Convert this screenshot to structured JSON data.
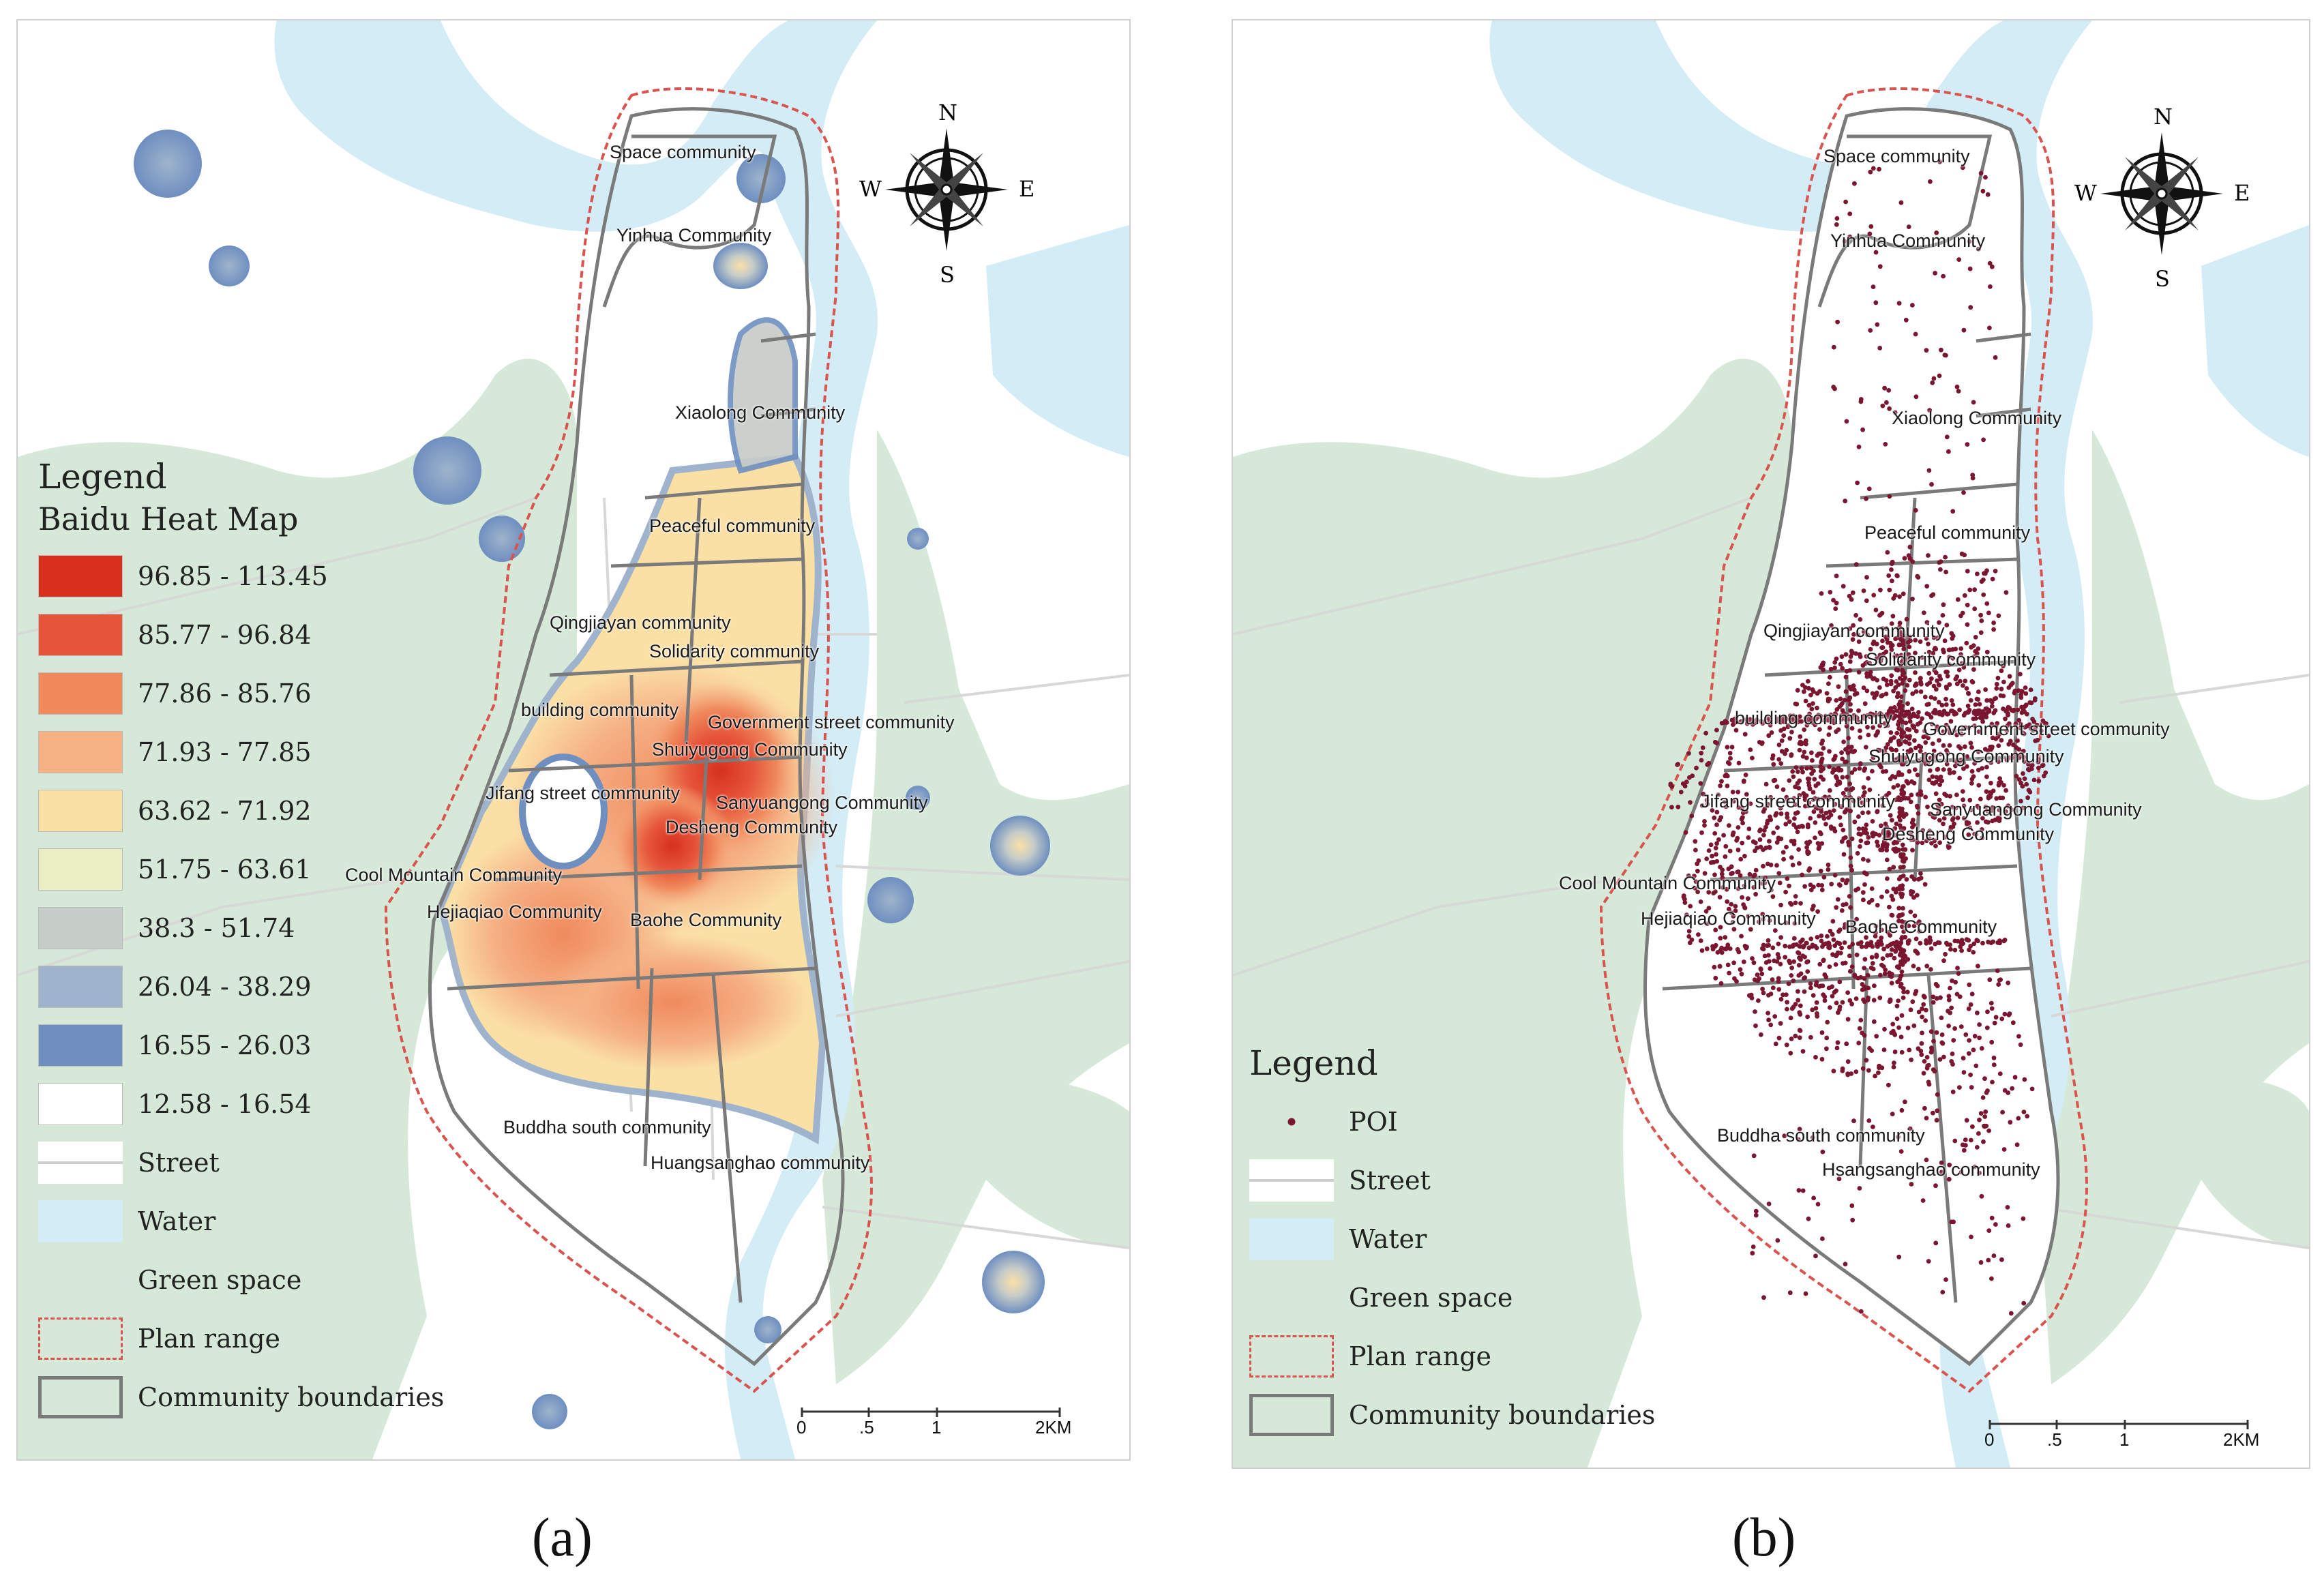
{
  "panel_a": {
    "caption": "(a)",
    "legend_title": "Legend",
    "legend_subtitle": "Baidu Heat Map",
    "heat_classes": [
      {
        "label": "96.85 - 113.45",
        "color": "#d7301f"
      },
      {
        "label": "85.77 - 96.84",
        "color": "#e6553a"
      },
      {
        "label": "77.86 - 85.76",
        "color": "#f08a5d"
      },
      {
        "label": "71.93 - 77.85",
        "color": "#f5b084"
      },
      {
        "label": "63.62 - 71.92",
        "color": "#fbe0a6"
      },
      {
        "label": "51.75 - 63.61",
        "color": "#e9efc3"
      },
      {
        "label": "38.3 - 51.74",
        "color": "#c6ccc8"
      },
      {
        "label": "26.04 - 38.29",
        "color": "#9fb4cc"
      },
      {
        "label": "16.55 - 26.03",
        "color": "#6f8fc0"
      },
      {
        "label": "12.58 - 16.54",
        "color": "#ffffff"
      }
    ],
    "base_layers": [
      {
        "label": "Street",
        "type": "street"
      },
      {
        "label": "Water",
        "type": "water",
        "color": "#d3ecf6"
      },
      {
        "label": "Green space",
        "type": "green",
        "color": "#d6e9d9"
      },
      {
        "label": "Plan range",
        "type": "plan",
        "color": "#d9534f"
      },
      {
        "label": "Community boundaries",
        "type": "boundary",
        "color": "#7a7a7a"
      }
    ],
    "communities": [
      "Space community",
      "Yinhua Community",
      "Xiaolong Community",
      "Peaceful community",
      "Qingjiayan community",
      "Solidarity community",
      "building community",
      "Government street community",
      "Shuiyugong Community",
      "Jifang street community",
      "Sanyuangong Community",
      "Desheng Community",
      "Cool Mountain Community",
      "Hejiaqiao Community",
      "Baohe Community",
      "Buddha south community",
      "Huangsanghao community"
    ],
    "compass": {
      "n": "N",
      "s": "S",
      "e": "E",
      "w": "W"
    },
    "scale_labels": [
      "0",
      ".5",
      "1",
      "2KM"
    ]
  },
  "panel_b": {
    "caption": "(b)",
    "legend_title": "Legend",
    "legend_items": [
      {
        "label": "POI",
        "type": "poi",
        "color": "#7a1630"
      },
      {
        "label": "Street",
        "type": "street"
      },
      {
        "label": "Water",
        "type": "water",
        "color": "#d3ecf6"
      },
      {
        "label": "Green space",
        "type": "green",
        "color": "#d6e9d9"
      },
      {
        "label": "Plan range",
        "type": "plan",
        "color": "#d9534f"
      },
      {
        "label": "Community boundaries",
        "type": "boundary",
        "color": "#7a7a7a"
      }
    ],
    "communities": [
      "Space community",
      "Yinhua Community",
      "Xiaolong Community",
      "Peaceful community",
      "Qingjiayan community",
      "Solidarity community",
      "building community",
      "Government street community",
      "Shuiyugong Community",
      "Jifang street community",
      "Sanyuangong Community",
      "Desheng Community",
      "Cool Mountain Community",
      "Hejiaqiao Community",
      "Baohe Community",
      "Buddha south community",
      "Hsangsanghao community"
    ],
    "compass": {
      "n": "N",
      "s": "S",
      "e": "E",
      "w": "W"
    },
    "scale_labels": [
      "0",
      ".5",
      "1",
      "2KM"
    ]
  }
}
